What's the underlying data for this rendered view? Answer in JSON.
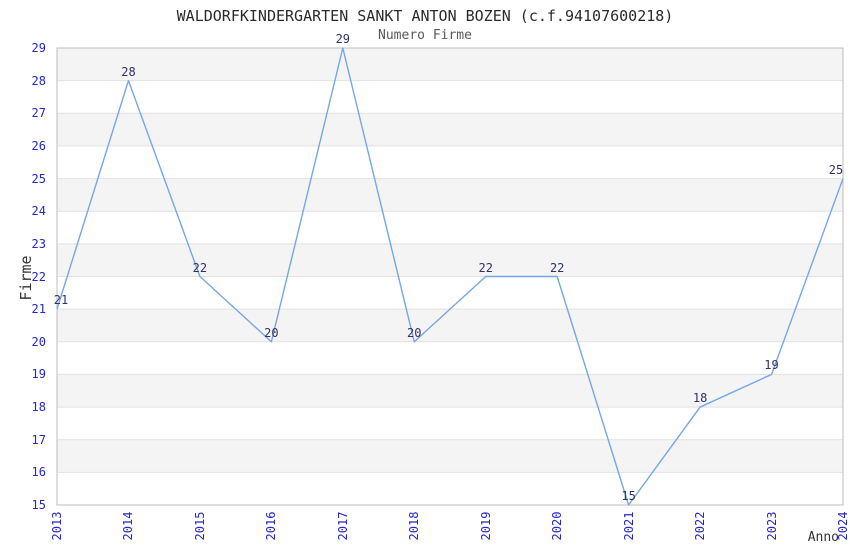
{
  "chart_data": {
    "type": "line",
    "title": "WALDORFKINDERGARTEN SANKT ANTON BOZEN (c.f.94107600218)",
    "subtitle": "Numero Firme",
    "xlabel": "Anno",
    "ylabel": "Firme",
    "categories": [
      "2013",
      "2014",
      "2015",
      "2016",
      "2017",
      "2018",
      "2019",
      "2020",
      "2021",
      "2022",
      "2023",
      "2024"
    ],
    "values": [
      21,
      28,
      22,
      20,
      29,
      20,
      22,
      22,
      15,
      18,
      19,
      25
    ],
    "ylim": [
      15,
      29
    ],
    "ytick_step": 1,
    "grid": true,
    "alternating_bands": true,
    "data_labels_visible": true,
    "legend_position": "none",
    "colors": {
      "line": "#74a7e8",
      "tick_labels": "#2626c9",
      "data_labels": "#31316b",
      "band": "#f4f4f4",
      "gridline": "#e2e2e2",
      "border": "#bdbdbd",
      "title": "#2b2b2b",
      "subtitle": "#5a5a5a",
      "axis_titles": "#333333",
      "background": "#ffffff"
    }
  }
}
